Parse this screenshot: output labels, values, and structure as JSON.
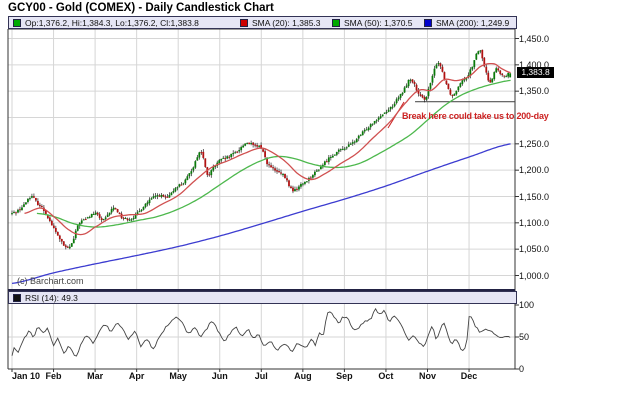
{
  "title": "GCY00 - Gold (COMEX) - Daily Candlestick Chart",
  "legend": {
    "items": [
      {
        "swatch": "#00aa00",
        "label": "Op:1,376.2, Hi:1,384.3, Lo:1,376.2, Cl:1,383.8"
      },
      {
        "swatch": "#cc0000",
        "label": "SMA (20): 1,385.3"
      },
      {
        "swatch": "#00aa00",
        "label": "SMA (50): 1,370.5"
      },
      {
        "swatch": "#0000cc",
        "label": "SMA (200): 1,249.9"
      }
    ]
  },
  "rsi_legend": {
    "swatch": "#111111",
    "label": "RSI (14): 49.3"
  },
  "copyright": "(c) Barchart.com",
  "annotation": {
    "text": "Break here could take us to 200-day",
    "color": "#cc2222"
  },
  "price_box": {
    "label": "1,383.8",
    "bg": "#000000",
    "fg": "#ffffff"
  },
  "chart_data": {
    "type": "candlestick",
    "title": "GCY00 - Gold (COMEX) - Daily Candlestick Chart",
    "x_labels": [
      "Jan 10",
      "Feb",
      "Mar",
      "Apr",
      "May",
      "Jun",
      "Jul",
      "Aug",
      "Sep",
      "Oct",
      "Nov",
      "Dec"
    ],
    "price_axis": {
      "min": 1000,
      "max": 1450,
      "step": 50,
      "visible_labels": [
        "1,450.0",
        "1,400.0",
        "1,350.0",
        "1,250.0",
        "1,200.0",
        "1,150.0",
        "1,100.0",
        "1,050.0",
        "1,000.0"
      ],
      "visible_values": [
        1450,
        1400,
        1350,
        1250,
        1200,
        1150,
        1100,
        1050,
        1000
      ],
      "grid_values": [
        1000,
        1050,
        1100,
        1150,
        1200,
        1250,
        1300,
        1350,
        1400,
        1450
      ]
    },
    "rsi_axis": {
      "min": 0,
      "max": 100,
      "labels": [
        "100",
        "50",
        "0"
      ],
      "values": [
        100,
        50,
        0
      ]
    },
    "ohlc_last": {
      "open": 1376.2,
      "high": 1384.3,
      "low": 1376.2,
      "close": 1383.8
    },
    "sma_last": {
      "sma20": 1385.3,
      "sma50": 1370.5,
      "sma200": 1249.9
    },
    "rsi_last": 49.3,
    "close_path": [
      [
        0,
        1118
      ],
      [
        0.25,
        1130
      ],
      [
        0.45,
        1150
      ],
      [
        0.6,
        1138
      ],
      [
        0.8,
        1120
      ],
      [
        1.0,
        1090
      ],
      [
        1.15,
        1070
      ],
      [
        1.3,
        1052
      ],
      [
        1.45,
        1062
      ],
      [
        1.6,
        1098
      ],
      [
        1.8,
        1108
      ],
      [
        2.0,
        1118
      ],
      [
        2.2,
        1105
      ],
      [
        2.45,
        1128
      ],
      [
        2.65,
        1110
      ],
      [
        2.85,
        1108
      ],
      [
        3.0,
        1116
      ],
      [
        3.2,
        1135
      ],
      [
        3.5,
        1152
      ],
      [
        3.75,
        1148
      ],
      [
        3.95,
        1168
      ],
      [
        4.15,
        1178
      ],
      [
        4.35,
        1205
      ],
      [
        4.55,
        1235
      ],
      [
        4.7,
        1192
      ],
      [
        4.85,
        1205
      ],
      [
        5.0,
        1218
      ],
      [
        5.2,
        1225
      ],
      [
        5.45,
        1238
      ],
      [
        5.65,
        1252
      ],
      [
        5.85,
        1245
      ],
      [
        6.0,
        1242
      ],
      [
        6.15,
        1212
      ],
      [
        6.35,
        1198
      ],
      [
        6.55,
        1188
      ],
      [
        6.75,
        1162
      ],
      [
        6.95,
        1172
      ],
      [
        7.2,
        1188
      ],
      [
        7.45,
        1208
      ],
      [
        7.7,
        1228
      ],
      [
        7.95,
        1240
      ],
      [
        8.2,
        1252
      ],
      [
        8.45,
        1272
      ],
      [
        8.7,
        1292
      ],
      [
        8.95,
        1308
      ],
      [
        9.15,
        1322
      ],
      [
        9.4,
        1348
      ],
      [
        9.6,
        1372
      ],
      [
        9.8,
        1342
      ],
      [
        9.95,
        1338
      ],
      [
        10.1,
        1372
      ],
      [
        10.25,
        1405
      ],
      [
        10.45,
        1365
      ],
      [
        10.6,
        1342
      ],
      [
        10.8,
        1368
      ],
      [
        10.95,
        1378
      ],
      [
        11.1,
        1402
      ],
      [
        11.25,
        1428
      ],
      [
        11.4,
        1388
      ],
      [
        11.5,
        1368
      ],
      [
        11.65,
        1392
      ],
      [
        11.8,
        1378
      ],
      [
        11.99,
        1383.8
      ]
    ],
    "sma20": [
      [
        0.3,
        1118
      ],
      [
        0.7,
        1128
      ],
      [
        1.0,
        1112
      ],
      [
        1.4,
        1085
      ],
      [
        1.7,
        1078
      ],
      [
        2.0,
        1092
      ],
      [
        2.4,
        1110
      ],
      [
        2.8,
        1115
      ],
      [
        3.2,
        1118
      ],
      [
        3.6,
        1135
      ],
      [
        4.0,
        1152
      ],
      [
        4.4,
        1180
      ],
      [
        4.8,
        1205
      ],
      [
        5.2,
        1218
      ],
      [
        5.6,
        1232
      ],
      [
        6.0,
        1242
      ],
      [
        6.3,
        1232
      ],
      [
        6.6,
        1215
      ],
      [
        6.9,
        1192
      ],
      [
        7.2,
        1182
      ],
      [
        7.5,
        1192
      ],
      [
        7.9,
        1212
      ],
      [
        8.3,
        1232
      ],
      [
        8.7,
        1262
      ],
      [
        9.1,
        1292
      ],
      [
        9.5,
        1330
      ],
      [
        9.8,
        1352
      ],
      [
        10.1,
        1352
      ],
      [
        10.4,
        1372
      ],
      [
        10.7,
        1370
      ],
      [
        11.0,
        1378
      ],
      [
        11.3,
        1398
      ],
      [
        11.6,
        1402
      ],
      [
        11.8,
        1392
      ],
      [
        12,
        1385.3
      ]
    ],
    "sma50": [
      [
        0.6,
        1118
      ],
      [
        1.0,
        1112
      ],
      [
        1.5,
        1098
      ],
      [
        2.0,
        1092
      ],
      [
        2.5,
        1096
      ],
      [
        3.0,
        1104
      ],
      [
        3.5,
        1112
      ],
      [
        4.0,
        1126
      ],
      [
        4.5,
        1146
      ],
      [
        5.0,
        1172
      ],
      [
        5.5,
        1198
      ],
      [
        6.0,
        1218
      ],
      [
        6.4,
        1226
      ],
      [
        6.8,
        1222
      ],
      [
        7.2,
        1212
      ],
      [
        7.6,
        1206
      ],
      [
        8.0,
        1206
      ],
      [
        8.4,
        1214
      ],
      [
        8.8,
        1230
      ],
      [
        9.2,
        1248
      ],
      [
        9.6,
        1268
      ],
      [
        10.0,
        1295
      ],
      [
        10.4,
        1322
      ],
      [
        10.8,
        1342
      ],
      [
        11.2,
        1355
      ],
      [
        11.6,
        1364
      ],
      [
        12,
        1370.5
      ]
    ],
    "sma200": [
      [
        0,
        985
      ],
      [
        1,
        1005
      ],
      [
        2,
        1022
      ],
      [
        3,
        1038
      ],
      [
        4,
        1055
      ],
      [
        5,
        1075
      ],
      [
        6,
        1098
      ],
      [
        7,
        1122
      ],
      [
        8,
        1145
      ],
      [
        9,
        1170
      ],
      [
        10,
        1198
      ],
      [
        11,
        1225
      ],
      [
        12,
        1249.9
      ]
    ],
    "support_line": {
      "price": 1330,
      "t1": 9.7,
      "t2": 12.1
    },
    "rsi_path": [
      [
        0,
        19
      ],
      [
        0.05,
        32
      ],
      [
        0.14,
        26
      ],
      [
        0.29,
        47
      ],
      [
        0.43,
        59
      ],
      [
        0.52,
        50
      ],
      [
        0.62,
        66
      ],
      [
        0.76,
        56
      ],
      [
        0.86,
        62
      ],
      [
        1.0,
        36
      ],
      [
        1.1,
        47
      ],
      [
        1.24,
        26
      ],
      [
        1.38,
        36
      ],
      [
        1.53,
        20
      ],
      [
        1.67,
        41
      ],
      [
        1.81,
        51
      ],
      [
        1.96,
        41
      ],
      [
        2.1,
        59
      ],
      [
        2.24,
        69
      ],
      [
        2.39,
        59
      ],
      [
        2.53,
        71
      ],
      [
        2.67,
        62
      ],
      [
        2.81,
        47
      ],
      [
        2.96,
        59
      ],
      [
        3.1,
        36
      ],
      [
        3.24,
        47
      ],
      [
        3.39,
        32
      ],
      [
        3.53,
        47
      ],
      [
        3.67,
        62
      ],
      [
        3.82,
        74
      ],
      [
        3.96,
        81
      ],
      [
        4.1,
        71
      ],
      [
        4.25,
        56
      ],
      [
        4.39,
        65
      ],
      [
        4.53,
        51
      ],
      [
        4.68,
        62
      ],
      [
        4.82,
        74
      ],
      [
        4.96,
        59
      ],
      [
        5.11,
        44
      ],
      [
        5.25,
        56
      ],
      [
        5.39,
        65
      ],
      [
        5.53,
        51
      ],
      [
        5.68,
        62
      ],
      [
        5.82,
        47
      ],
      [
        5.92,
        54
      ],
      [
        6.06,
        36
      ],
      [
        6.2,
        43
      ],
      [
        6.39,
        31
      ],
      [
        6.58,
        40
      ],
      [
        6.75,
        28
      ],
      [
        6.87,
        39
      ],
      [
        7.06,
        33
      ],
      [
        7.23,
        46
      ],
      [
        7.3,
        36
      ],
      [
        7.4,
        58
      ],
      [
        7.49,
        51
      ],
      [
        7.59,
        88
      ],
      [
        7.78,
        81
      ],
      [
        7.87,
        73
      ],
      [
        7.97,
        81
      ],
      [
        8.11,
        76
      ],
      [
        8.18,
        66
      ],
      [
        8.3,
        61
      ],
      [
        8.42,
        70
      ],
      [
        8.54,
        76
      ],
      [
        8.66,
        81
      ],
      [
        8.73,
        95
      ],
      [
        8.85,
        85
      ],
      [
        8.95,
        91
      ],
      [
        9.07,
        76
      ],
      [
        9.21,
        81
      ],
      [
        9.33,
        73
      ],
      [
        9.45,
        58
      ],
      [
        9.54,
        46
      ],
      [
        9.69,
        51
      ],
      [
        9.78,
        43
      ],
      [
        9.92,
        36
      ],
      [
        10.02,
        51
      ],
      [
        10.12,
        66
      ],
      [
        10.21,
        46
      ],
      [
        10.31,
        61
      ],
      [
        10.4,
        73
      ],
      [
        10.5,
        51
      ],
      [
        10.59,
        40
      ],
      [
        10.69,
        46
      ],
      [
        10.81,
        31
      ],
      [
        10.93,
        36
      ],
      [
        11.0,
        81
      ],
      [
        11.16,
        66
      ],
      [
        11.28,
        58
      ],
      [
        11.4,
        61
      ],
      [
        11.52,
        58
      ],
      [
        11.64,
        54
      ],
      [
        11.76,
        50
      ],
      [
        11.99,
        49.3
      ]
    ],
    "colors": {
      "up": "#0a7a0a",
      "down": "#b11212",
      "wick": "#222222",
      "sma20": "#d05050",
      "sma50": "#4db84d",
      "sma200": "#3c3cd0",
      "grid": "#d6d6d6",
      "border": "#333333",
      "separator": "#222244",
      "rsi_line": "#444444",
      "support": "#555555"
    }
  }
}
